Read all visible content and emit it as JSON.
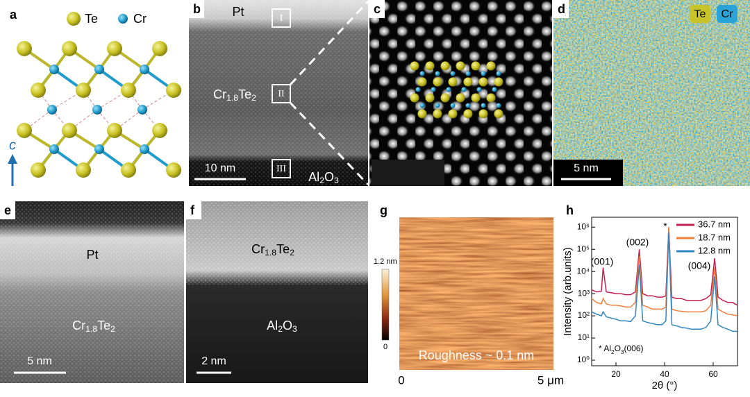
{
  "panels": {
    "a": {
      "label": "a",
      "legend": [
        "Te",
        "Cr"
      ],
      "axis": "c"
    },
    "b": {
      "label": "b",
      "top": "Pt",
      "middle": [
        "Cr",
        "1.8",
        "Te",
        "2"
      ],
      "bottom": [
        "Al",
        "2",
        "O",
        "3"
      ],
      "regions": [
        "I",
        "II",
        "III"
      ],
      "scale_bar": "10 nm"
    },
    "c": {
      "label": "c"
    },
    "d": {
      "label": "d",
      "legend": [
        "Te",
        "Cr"
      ],
      "scale_bar": "5 nm"
    },
    "e": {
      "label": "e",
      "top": "Pt",
      "bottom": [
        "Cr",
        "1.8",
        "Te",
        "2"
      ],
      "scale_bar": "5 nm"
    },
    "f": {
      "label": "f",
      "top": [
        "Cr",
        "1.8",
        "Te",
        "2"
      ],
      "bottom": [
        "Al",
        "2",
        "O",
        "3"
      ],
      "scale_bar": "2 nm"
    },
    "g": {
      "label": "g",
      "colorbar": [
        "1.2 nm",
        "0"
      ],
      "annotation": "Roughness ~ 0.1 nm",
      "x_axis": [
        "0",
        "5 μm"
      ]
    }
  },
  "chart_data": {
    "type": "line",
    "label": "h",
    "xlabel": "2θ (°)",
    "ylabel": "Intensity (arb.units)",
    "x": [
      10,
      12,
      14,
      14.7,
      16,
      18,
      20,
      22,
      24,
      26,
      28,
      29.6,
      31,
      33,
      35,
      37,
      39,
      40.5,
      41.7,
      43,
      45,
      47,
      49,
      51,
      53,
      55,
      57,
      59,
      60.6,
      62,
      64,
      66,
      68,
      70
    ],
    "series": [
      {
        "name": "36.7 nm",
        "color": "#c0204f",
        "values": [
          1500,
          1200,
          1300,
          15000,
          1200,
          1100,
          1000,
          1000,
          900,
          900,
          1200,
          100000,
          1000,
          800,
          800,
          700,
          700,
          800,
          1000000,
          700,
          600,
          600,
          500,
          500,
          500,
          500,
          600,
          900,
          40000,
          700,
          500,
          400,
          400,
          300
        ]
      },
      {
        "name": "18.7 nm",
        "color": "#f07f3c",
        "values": [
          600,
          400,
          350,
          600,
          350,
          300,
          300,
          280,
          250,
          250,
          400,
          50000,
          300,
          250,
          200,
          200,
          200,
          250,
          1000000,
          200,
          170,
          160,
          150,
          150,
          150,
          150,
          170,
          300,
          15000,
          200,
          150,
          120,
          110,
          100
        ]
      },
      {
        "name": "12.8 nm",
        "color": "#2f86c0",
        "values": [
          150,
          120,
          100,
          150,
          90,
          80,
          70,
          60,
          60,
          55,
          100,
          20000,
          60,
          50,
          45,
          40,
          40,
          60,
          600000,
          40,
          35,
          30,
          28,
          25,
          25,
          25,
          30,
          60,
          6000,
          40,
          30,
          25,
          20,
          20
        ]
      }
    ],
    "xlim": [
      10,
      70
    ],
    "xticks": [
      20,
      40,
      60
    ],
    "ylim": [
      0.56,
      2800000
    ],
    "yscale": "log",
    "yticks": [
      {
        "value": 1,
        "label": "10⁰"
      },
      {
        "value": 10,
        "label": "10¹"
      },
      {
        "value": 100,
        "label": "10²"
      },
      {
        "value": 1000,
        "label": "10³"
      },
      {
        "value": 10000,
        "label": "10⁴"
      },
      {
        "value": 100000,
        "label": "10⁵"
      },
      {
        "value": 1000000,
        "label": "10⁶"
      }
    ],
    "legend": "upper right",
    "peak_labels": [
      "(001)",
      "(002)",
      "(004)"
    ],
    "marker": "*",
    "note": [
      "* Al",
      "2",
      "O",
      "3",
      "(006)"
    ]
  }
}
